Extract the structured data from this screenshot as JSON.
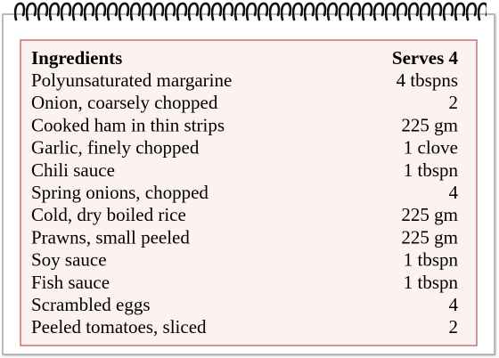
{
  "table": {
    "header": [
      "Ingredients",
      "Serves 4"
    ],
    "rows": [
      [
        "Polyunsaturated margarine",
        "4 tbspns"
      ],
      [
        "Onion, coarsely chopped",
        "2"
      ],
      [
        "Cooked ham in thin strips",
        "225 gm"
      ],
      [
        "Garlic, finely chopped",
        "1 clove"
      ],
      [
        "Chili sauce",
        "1 tbspn"
      ],
      [
        "Spring onions, chopped",
        "4"
      ],
      [
        "Cold, dry boiled rice",
        "225 gm"
      ],
      [
        "Prawns, small peeled",
        "225 gm"
      ],
      [
        "Soy sauce",
        "1 tbspn"
      ],
      [
        "Fish sauce",
        "1 tbspn"
      ],
      [
        "Scrambled eggs",
        "4"
      ],
      [
        "Peeled tomatoes, sliced",
        "2"
      ]
    ]
  }
}
